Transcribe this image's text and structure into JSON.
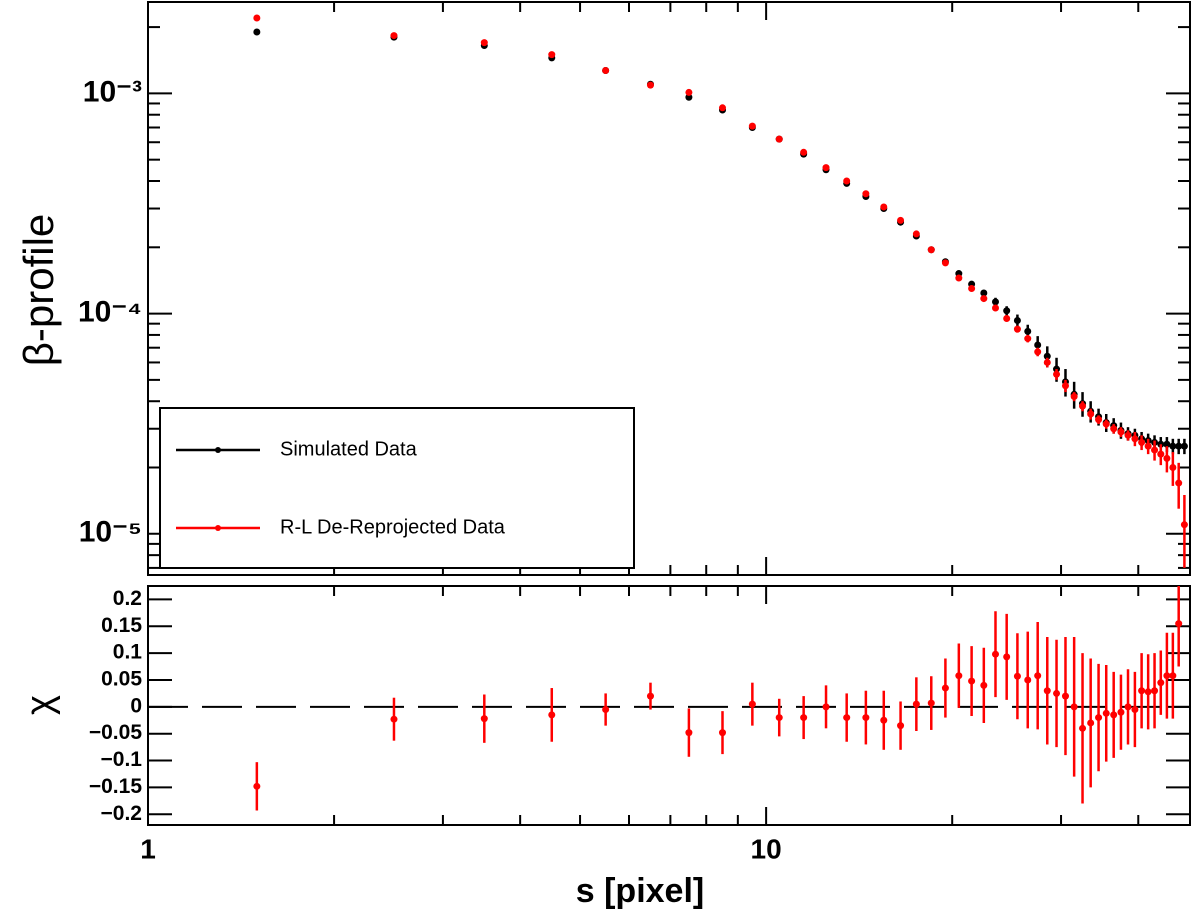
{
  "chart_data": [
    {
      "type": "scatter",
      "ylabel": "β-profile",
      "xlog": true,
      "ylog": true,
      "xlim": [
        1,
        48.5
      ],
      "ylim": [
        6.5e-06,
        0.0026
      ],
      "xticks": [
        1,
        10
      ],
      "xminor": [
        2,
        3,
        4,
        5,
        6,
        7,
        8,
        9,
        20,
        30,
        40
      ],
      "yticks": [
        {
          "value": 1e-05,
          "label": "10⁻⁵"
        },
        {
          "value": 0.0001,
          "label": "10⁻⁴"
        },
        {
          "value": 0.001,
          "label": "10⁻³"
        }
      ],
      "yminor": [
        7e-06,
        8e-06,
        9e-06,
        2e-05,
        3e-05,
        4e-05,
        5e-05,
        6e-05,
        7e-05,
        8e-05,
        9e-05,
        0.0002,
        0.0003,
        0.0004,
        0.0005,
        0.0006,
        0.0007,
        0.0008,
        0.0009,
        0.002
      ],
      "legend": "lower-left",
      "x": [
        1.5,
        2.5,
        3.5,
        4.5,
        5.5,
        6.5,
        7.5,
        8.5,
        9.5,
        10.5,
        11.5,
        12.5,
        13.5,
        14.5,
        15.5,
        16.5,
        17.5,
        18.5,
        19.5,
        20.5,
        21.5,
        22.5,
        23.5,
        24.5,
        25.5,
        26.5,
        27.5,
        28.5,
        29.5,
        30.5,
        31.5,
        32.5,
        33.5,
        34.5,
        35.5,
        36.5,
        37.5,
        38.5,
        39.5,
        40.5,
        41.5,
        42.5,
        43.5,
        44.5,
        45.5,
        46.5,
        47.5
      ],
      "series": [
        {
          "name": "Simulated Data",
          "color": "#000000",
          "values": [
            0.0019,
            0.0018,
            0.00165,
            0.00145,
            0.00127,
            0.0011,
            0.00096,
            0.00084,
            0.0007,
            0.00062,
            0.00053,
            0.00045,
            0.00039,
            0.00034,
            0.0003,
            0.00026,
            0.000225,
            0.000195,
            0.000172,
            0.000152,
            0.000136,
            0.000124,
            0.000113,
            0.000103,
            9.3e-05,
            8.3e-05,
            7.2e-05,
            6.4e-05,
            5.6e-05,
            4.9e-05,
            4.3e-05,
            3.9e-05,
            3.6e-05,
            3.4e-05,
            3.2e-05,
            3.1e-05,
            2.95e-05,
            2.85e-05,
            2.8e-05,
            2.7e-05,
            2.65e-05,
            2.6e-05,
            2.55e-05,
            2.55e-05,
            2.5e-05,
            2.5e-05,
            2.5e-05
          ],
          "errors": [
            2e-05,
            2e-05,
            2e-05,
            2e-05,
            1.5e-05,
            1.5e-05,
            1.5e-05,
            1.2e-05,
            1e-05,
            1e-05,
            9e-06,
            8e-06,
            7e-06,
            7e-06,
            7e-06,
            6e-06,
            5e-06,
            4e-06,
            4e-06,
            4e-06,
            4e-06,
            4e-06,
            5e-06,
            5e-06,
            6e-06,
            6e-06,
            7e-06,
            7e-06,
            7e-06,
            7e-06,
            6e-06,
            5e-06,
            4e-06,
            3e-06,
            3e-06,
            2.5e-06,
            2.5e-06,
            2e-06,
            2e-06,
            2e-06,
            2e-06,
            2e-06,
            2e-06,
            2e-06,
            2e-06,
            2e-06,
            2e-06
          ]
        },
        {
          "name": "R-L De-Reprojected Data",
          "color": "#ff0000",
          "values": [
            0.0022,
            0.00183,
            0.0017,
            0.0015,
            0.00127,
            0.00109,
            0.00101,
            0.00086,
            0.00071,
            0.00062,
            0.00054,
            0.00046,
            0.0004,
            0.00035,
            0.000305,
            0.000265,
            0.00023,
            0.000195,
            0.00017,
            0.000145,
            0.00013,
            0.000117,
            0.000106,
            9.5e-05,
            8.5e-05,
            7.7e-05,
            6.7e-05,
            6e-05,
            5.3e-05,
            4.7e-05,
            4.2e-05,
            3.8e-05,
            3.5e-05,
            3.3e-05,
            3.15e-05,
            3e-05,
            2.9e-05,
            2.8e-05,
            2.7e-05,
            2.6e-05,
            2.5e-05,
            2.4e-05,
            2.3e-05,
            2.2e-05,
            2e-05,
            1.7e-05,
            1.1e-05
          ],
          "errors": [
            1e-05,
            1e-05,
            1e-05,
            1e-05,
            1e-05,
            8e-06,
            8e-06,
            6e-06,
            5e-06,
            5e-06,
            4e-06,
            4e-06,
            4e-06,
            4e-06,
            4e-06,
            3e-06,
            3e-06,
            3e-06,
            3e-06,
            3e-06,
            3e-06,
            3e-06,
            3e-06,
            3e-06,
            3e-06,
            3e-06,
            3e-06,
            3e-06,
            3e-06,
            3e-06,
            2e-06,
            2e-06,
            2e-06,
            1.5e-06,
            1.5e-06,
            1.5e-06,
            1.5e-06,
            1.5e-06,
            2e-06,
            2e-06,
            2e-06,
            2.5e-06,
            2.5e-06,
            3e-06,
            3.5e-06,
            4e-06,
            4e-06
          ]
        }
      ]
    },
    {
      "type": "scatter",
      "xlabel": "s [pixel]",
      "ylabel": "χ",
      "xlog": true,
      "xlim": [
        1,
        48.5
      ],
      "ylim": [
        -0.22,
        0.225
      ],
      "xticks": [
        1,
        10
      ],
      "xminor": [
        2,
        3,
        4,
        5,
        6,
        7,
        8,
        9,
        20,
        30,
        40
      ],
      "yticks": [
        {
          "value": -0.2,
          "label": "−0.2"
        },
        {
          "value": -0.15,
          "label": "−0.15"
        },
        {
          "value": -0.1,
          "label": "−0.1"
        },
        {
          "value": -0.05,
          "label": "−0.05"
        },
        0,
        0.05,
        0.1,
        0.15,
        0.2
      ],
      "hline": 0,
      "x": [
        1.5,
        2.5,
        3.5,
        4.5,
        5.5,
        6.5,
        7.5,
        8.5,
        9.5,
        10.5,
        11.5,
        12.5,
        13.5,
        14.5,
        15.5,
        16.5,
        17.5,
        18.5,
        19.5,
        20.5,
        21.5,
        22.5,
        23.5,
        24.5,
        25.5,
        26.5,
        27.5,
        28.5,
        29.5,
        30.5,
        31.5,
        32.5,
        33.5,
        34.5,
        35.5,
        36.5,
        37.5,
        38.5,
        39.5,
        40.5,
        41.5,
        42.5,
        43.5,
        44.5,
        45.5,
        46.5,
        47.5
      ],
      "series": [
        {
          "color": "#ff0000",
          "values": [
            -0.148,
            -0.023,
            -0.022,
            -0.015,
            -0.005,
            0.02,
            -0.048,
            -0.048,
            0.005,
            -0.02,
            -0.02,
            0.0,
            -0.02,
            -0.02,
            -0.025,
            -0.035,
            0.005,
            0.007,
            0.035,
            0.058,
            0.048,
            0.04,
            0.098,
            0.093,
            0.057,
            0.05,
            0.058,
            0.03,
            0.025,
            0.02,
            0.0,
            -0.04,
            -0.03,
            -0.02,
            -0.012,
            -0.015,
            -0.01,
            0.0,
            -0.005,
            0.03,
            0.028,
            0.03,
            0.045,
            0.058,
            0.058,
            0.155,
            null
          ],
          "errors": [
            0.045,
            0.04,
            0.045,
            0.05,
            0.03,
            0.025,
            0.045,
            0.04,
            0.04,
            0.035,
            0.04,
            0.04,
            0.045,
            0.05,
            0.055,
            0.045,
            0.05,
            0.05,
            0.055,
            0.06,
            0.065,
            0.07,
            0.08,
            0.08,
            0.08,
            0.09,
            0.1,
            0.1,
            0.1,
            0.11,
            0.13,
            0.14,
            0.12,
            0.1,
            0.09,
            0.08,
            0.07,
            0.07,
            0.07,
            0.07,
            0.07,
            0.07,
            0.06,
            0.08,
            0.08,
            0.08,
            null
          ]
        }
      ]
    }
  ]
}
